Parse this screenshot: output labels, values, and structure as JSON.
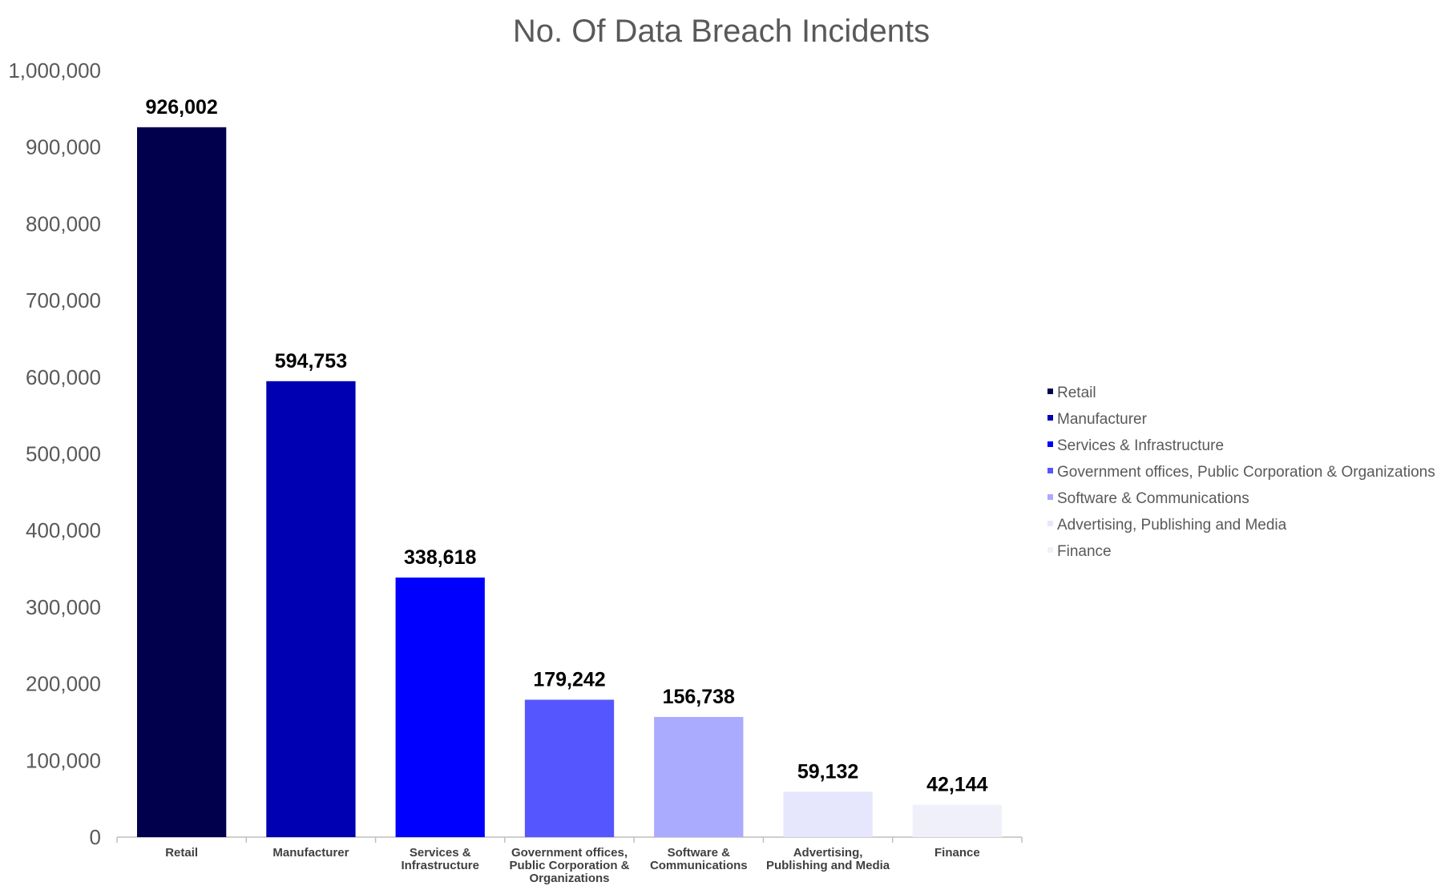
{
  "chart_data": {
    "type": "bar",
    "title": "No.  Of Data Breach Incidents",
    "xlabel": "",
    "ylabel": "",
    "ylim": [
      0,
      1000000
    ],
    "yticks": [
      0,
      100000,
      200000,
      300000,
      400000,
      500000,
      600000,
      700000,
      800000,
      900000,
      1000000
    ],
    "ytick_labels": [
      "0",
      "100,000",
      "200,000",
      "300,000",
      "400,000",
      "500,000",
      "600,000",
      "700,000",
      "800,000",
      "900,000",
      "1,000,000"
    ],
    "grid": false,
    "legend_position": "right",
    "categories": [
      "Retail",
      "Manufacturer",
      "Services & Infrastructure",
      "Government offices, Public Corporation & Organizations",
      "Software & Communications",
      "Advertising, Publishing and Media",
      "Finance"
    ],
    "category_tick_lines": [
      [
        "Retail"
      ],
      [
        "Manufacturer"
      ],
      [
        "Services &",
        "Infrastructure"
      ],
      [
        "Government offices,",
        "Public Corporation &",
        "Organizations"
      ],
      [
        "Software &",
        "Communications"
      ],
      [
        "Advertising,",
        "Publishing and Media"
      ],
      [
        "Finance"
      ]
    ],
    "values": [
      926002,
      594753,
      338618,
      179242,
      156738,
      59132,
      42144
    ],
    "value_labels": [
      "926,002",
      "594,753",
      "338,618",
      "179,242",
      "156,738",
      "59,132",
      "42,144"
    ],
    "colors": [
      "#00004d",
      "#0000b3",
      "#0000ff",
      "#5656ff",
      "#aaaaff",
      "#e6e6fc",
      "#f0f0fa"
    ],
    "legend": [
      "Retail",
      "Manufacturer",
      "Services & Infrastructure",
      "Government offices, Public Corporation & Organizations",
      "Software & Communications",
      "Advertising, Publishing and Media",
      "Finance"
    ]
  }
}
